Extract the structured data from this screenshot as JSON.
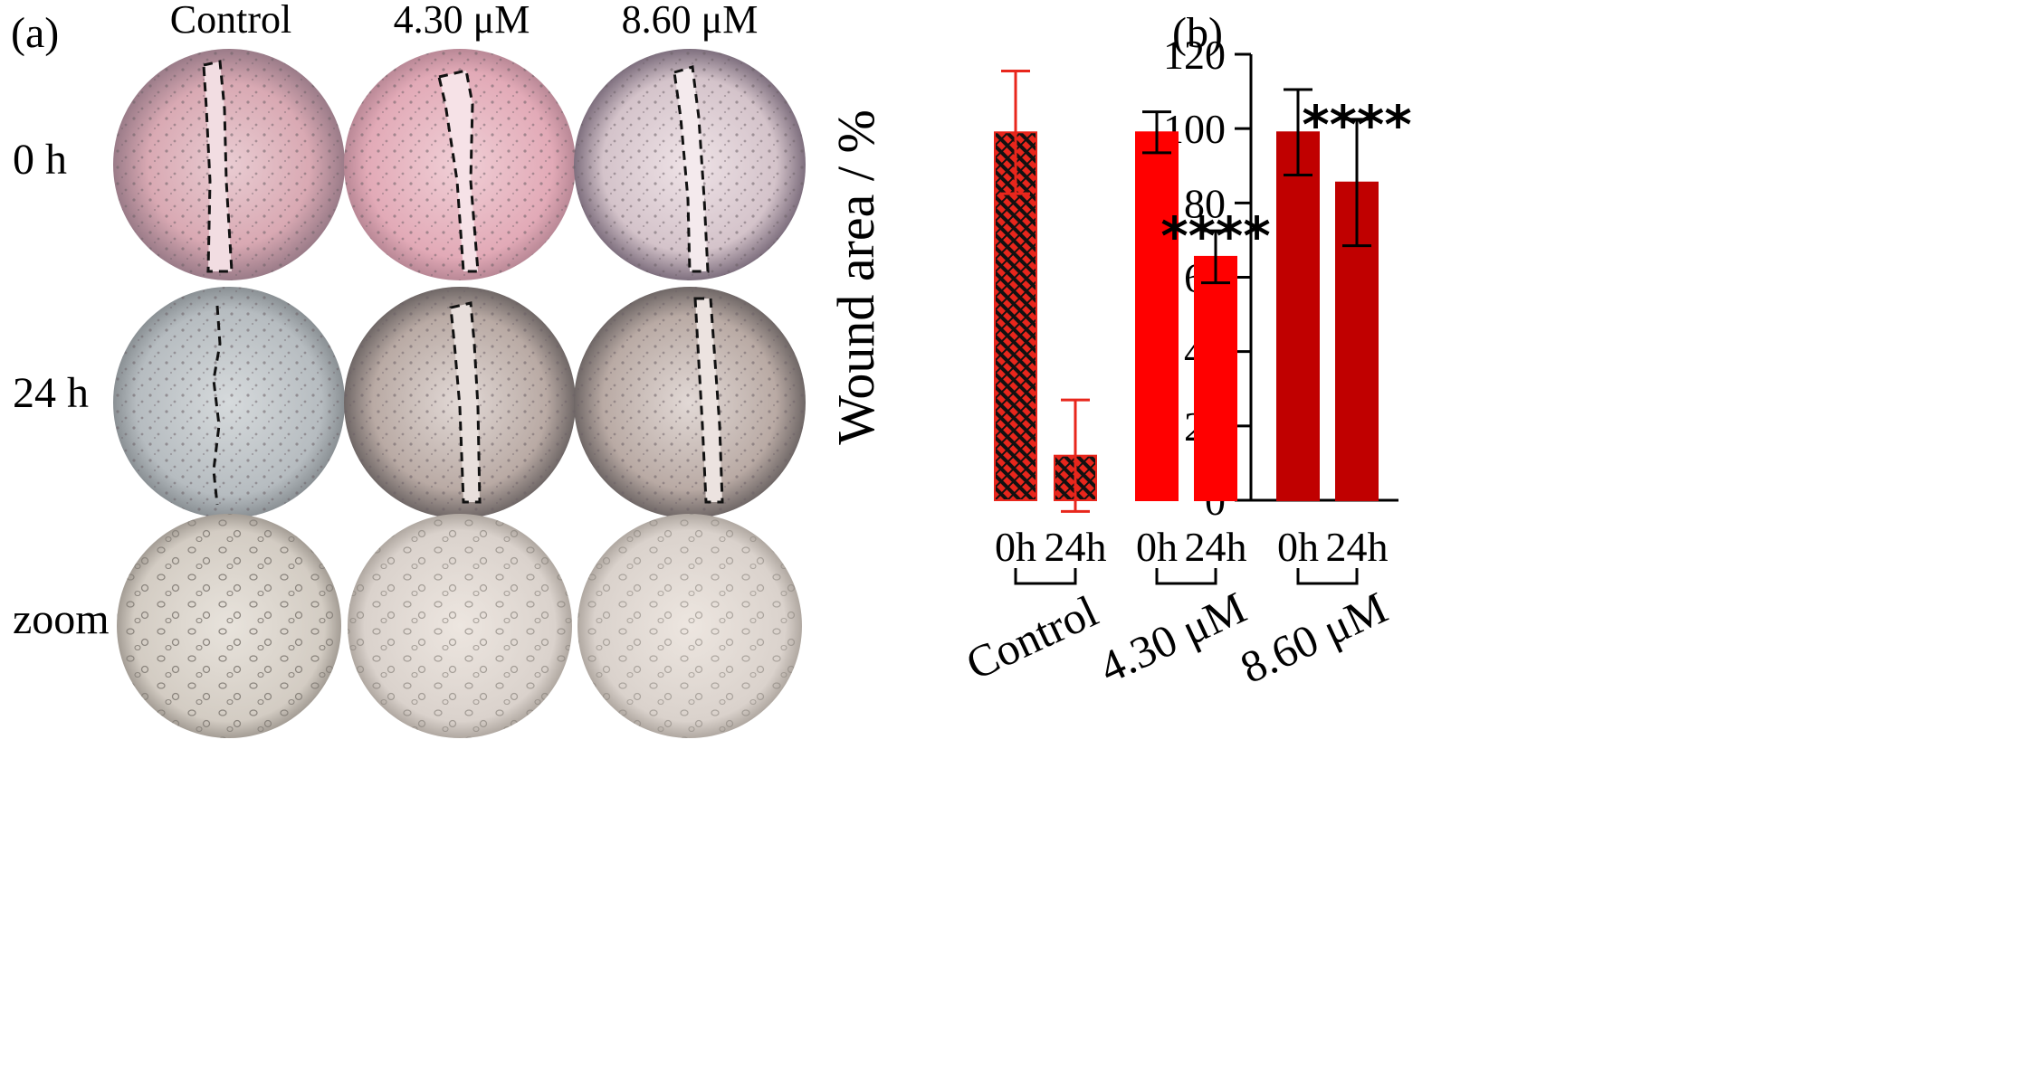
{
  "panel_a": {
    "label": "(a)",
    "columns": [
      "Control",
      "4.30 μM",
      "8.60 μM"
    ],
    "rows": [
      "0 h",
      "24 h",
      "zoom"
    ]
  },
  "panel_b": {
    "label": "(b)"
  },
  "chart_data": {
    "type": "bar",
    "ylabel": "Wound area / %",
    "ylim": [
      0,
      120
    ],
    "yticks": [
      0,
      20,
      40,
      60,
      80,
      100,
      120
    ],
    "categories": [
      "0h",
      "24h",
      "0h",
      "24h",
      "0h",
      "24h"
    ],
    "groups": [
      {
        "name": "Control",
        "indices": [
          0,
          1
        ]
      },
      {
        "name": "4.30  μM",
        "indices": [
          2,
          3
        ]
      },
      {
        "name": "8.60  μM",
        "indices": [
          4,
          5
        ]
      }
    ],
    "values": [
      99,
      12,
      99,
      65.5,
      99,
      85.5
    ],
    "errors": [
      16.5,
      15,
      5.5,
      7,
      11.5,
      17
    ],
    "colors": [
      "#e8261c",
      "#e8261c",
      "#ff0000",
      "#ff0000",
      "#c00000",
      "#c00000"
    ],
    "annotations": [
      {
        "index": 3,
        "text": "****"
      },
      {
        "index": 5,
        "text": "****"
      }
    ]
  }
}
